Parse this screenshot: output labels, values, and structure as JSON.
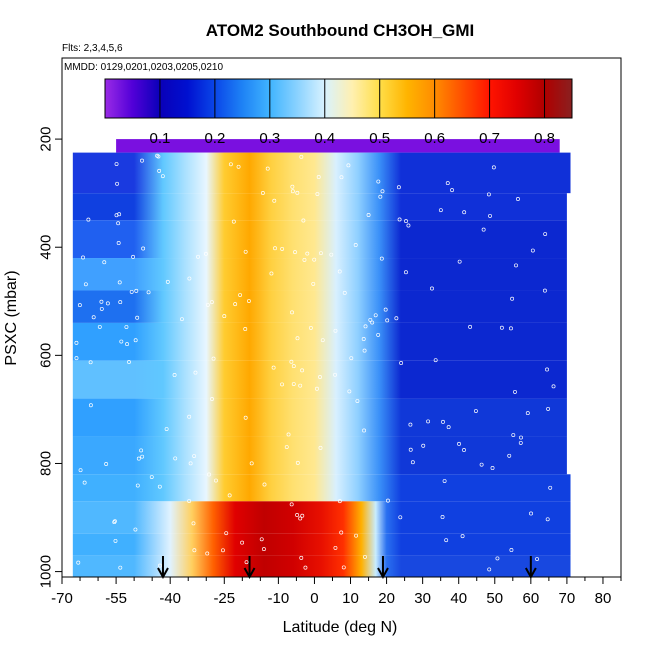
{
  "chart_data": {
    "type": "heatmap",
    "title": "ATOM2 Southbound CH3OH_GMI",
    "flights_note": "Flts: 2,3,4,5,6",
    "dates_note": "MMDD: 0129,0201,0203,0205,0210",
    "xlabel": "Latitude (deg N)",
    "ylabel": "PSXC (mbar)",
    "xlim": [
      -70,
      85
    ],
    "ylim": [
      1010,
      50
    ],
    "y_reversed": true,
    "x_tick_labels": [
      "-70",
      "-55",
      "-40",
      "-25",
      "-10",
      "0",
      "10",
      "20",
      "30",
      "40",
      "50",
      "60",
      "70",
      "80"
    ],
    "x_tick_values": [
      -70,
      -55,
      -40,
      -25,
      -10,
      0,
      10,
      20,
      30,
      40,
      50,
      60,
      70,
      80
    ],
    "x_minor_ticks": [
      -65,
      -60,
      -50,
      -45,
      -35,
      -30,
      -20,
      -15,
      -5,
      5,
      15,
      25,
      35,
      45,
      55,
      65,
      75,
      85
    ],
    "y_tick_labels": [
      "200",
      "400",
      "600",
      "800",
      "1000"
    ],
    "y_tick_values": [
      200,
      400,
      600,
      800,
      1000
    ],
    "colorbar": {
      "range": [
        0.0,
        0.85
      ],
      "tick_labels": [
        "0.1",
        "0.2",
        "0.3",
        "0.4",
        "0.5",
        "0.6",
        "0.7",
        "0.8"
      ],
      "tick_values": [
        0.1,
        0.2,
        0.3,
        0.4,
        0.5,
        0.6,
        0.7,
        0.8
      ],
      "colors": [
        "#9a2be6",
        "#5200d8",
        "#0a00b8",
        "#0010d0",
        "#0a46e8",
        "#1e82f5",
        "#40b4ff",
        "#8ad2ff",
        "#d8f2ff",
        "#fff0b0",
        "#ffde48",
        "#ffb400",
        "#ff8c00",
        "#ff5000",
        "#ff1400",
        "#e00000",
        "#b00000",
        "#8a2020"
      ]
    },
    "layers": [
      {
        "p": [
          200,
          225
        ],
        "lat": [
          -55,
          68
        ],
        "left": "#7a10e0",
        "right": "#7a10e0",
        "enhanced": false
      },
      {
        "p": [
          225,
          300
        ],
        "lat": [
          -67,
          71
        ],
        "left": "#1a3ae0",
        "right": "#1030d8",
        "enhanced": true
      },
      {
        "p": [
          300,
          350
        ],
        "lat": [
          -67,
          70
        ],
        "left": "#1040e0",
        "right": "#1030d8",
        "enhanced": true
      },
      {
        "p": [
          350,
          420
        ],
        "lat": [
          -67,
          70
        ],
        "left": "#2060f0",
        "right": "#0c28d0",
        "enhanced": true
      },
      {
        "p": [
          420,
          480
        ],
        "lat": [
          -67,
          70
        ],
        "left": "#40a0ff",
        "right": "#0c28d0",
        "enhanced": true
      },
      {
        "p": [
          480,
          540
        ],
        "lat": [
          -67,
          70
        ],
        "left": "#1e70f0",
        "right": "#0c28d0",
        "enhanced": true
      },
      {
        "p": [
          540,
          610
        ],
        "lat": [
          -67,
          70
        ],
        "left": "#30a0ff",
        "right": "#0c28d0",
        "enhanced": true
      },
      {
        "p": [
          610,
          680
        ],
        "lat": [
          -67,
          70
        ],
        "left": "#60c0ff",
        "right": "#0c28d0",
        "enhanced": true
      },
      {
        "p": [
          680,
          750
        ],
        "lat": [
          -67,
          70
        ],
        "left": "#30a0ff",
        "right": "#1038d8",
        "enhanced": true
      },
      {
        "p": [
          750,
          820
        ],
        "lat": [
          -67,
          70
        ],
        "left": "#3aa8ff",
        "right": "#1038d8",
        "enhanced": true
      },
      {
        "p": [
          820,
          870
        ],
        "lat": [
          -67,
          71
        ],
        "left": "#40b0ff",
        "right": "#1040e0",
        "enhanced": true
      },
      {
        "p": [
          870,
          930
        ],
        "lat": [
          -67,
          71
        ],
        "left": "#50b8ff",
        "right": "#1040e0",
        "enhanced": true
      },
      {
        "p": [
          930,
          970
        ],
        "lat": [
          -67,
          71
        ],
        "left": "#40b0ff",
        "right": "#1040e0",
        "enhanced": true
      },
      {
        "p": [
          970,
          1010
        ],
        "lat": [
          -67,
          71
        ],
        "left": "#50b8ff",
        "right": "#1848e0",
        "enhanced": true
      }
    ],
    "arrows_lat": [
      -42,
      -18,
      19,
      60
    ]
  }
}
